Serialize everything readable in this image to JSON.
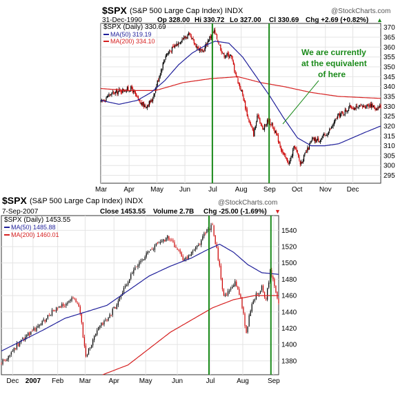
{
  "chart_data": [
    {
      "type": "candlestick",
      "symbol": "$SPX",
      "title": "$SPX",
      "subtitle": "(S&P 500 Large Cap Index) INDX",
      "watermark": "@StockCharts.com",
      "date": "31-Dec-1990",
      "quote": {
        "op": "Op 328.00",
        "hi": "Hi 330.72",
        "lo": "Lo 327.00",
        "cl": "Cl 330.69",
        "chg": "Chg +2.69 (+0.82%)"
      },
      "arrow": "▲",
      "legend": [
        {
          "label": "$SPX (Daily) 330.69",
          "color": "#000000"
        },
        {
          "label": "MA(50) 319.19",
          "color": "#1f1f9a"
        },
        {
          "label": "MA(200) 334.10",
          "color": "#d62020"
        }
      ],
      "annotation": {
        "lines": [
          "We are currently",
          "at the equivalent",
          "of here"
        ],
        "color": "#1a8a1a"
      },
      "x_tick_labels": [
        "Mar",
        "Apr",
        "May",
        "Jun",
        "Jul",
        "Aug",
        "Sep",
        "Oct",
        "Nov",
        "Dec"
      ],
      "x_tick_pos": [
        0.5,
        31,
        61.5,
        92,
        122.5,
        153.5,
        184.5,
        214.5,
        245.5,
        275.5
      ],
      "x_range": [
        0,
        306
      ],
      "y_ticks": [
        295,
        300,
        305,
        310,
        315,
        320,
        325,
        330,
        335,
        340,
        345,
        350,
        355,
        360,
        365,
        370
      ],
      "ylim": [
        291,
        372
      ],
      "vlines_x": [
        122,
        184
      ],
      "close_anchors": [
        [
          0,
          332
        ],
        [
          10,
          336
        ],
        [
          22,
          338
        ],
        [
          34,
          339
        ],
        [
          42,
          332
        ],
        [
          49,
          330
        ],
        [
          56,
          333
        ],
        [
          63,
          344
        ],
        [
          71,
          356
        ],
        [
          80,
          360
        ],
        [
          88,
          364
        ],
        [
          96,
          366
        ],
        [
          104,
          361
        ],
        [
          111,
          357
        ],
        [
          118,
          364
        ],
        [
          124,
          368
        ],
        [
          129,
          362
        ],
        [
          134,
          356
        ],
        [
          142,
          356
        ],
        [
          149,
          344
        ],
        [
          155,
          336
        ],
        [
          161,
          324
        ],
        [
          167,
          316
        ],
        [
          172,
          326
        ],
        [
          177,
          318
        ],
        [
          183,
          323
        ],
        [
          188,
          320
        ],
        [
          194,
          313
        ],
        [
          200,
          305
        ],
        [
          206,
          301
        ],
        [
          212,
          310
        ],
        [
          218,
          301
        ],
        [
          224,
          306
        ],
        [
          231,
          313
        ],
        [
          238,
          313
        ],
        [
          245,
          315
        ],
        [
          252,
          319
        ],
        [
          259,
          325
        ],
        [
          266,
          327
        ],
        [
          273,
          330
        ],
        [
          280,
          329
        ],
        [
          287,
          330
        ],
        [
          294,
          331
        ],
        [
          300,
          329
        ],
        [
          306,
          330
        ]
      ],
      "ma50_anchors": [
        [
          0,
          333
        ],
        [
          20,
          331
        ],
        [
          40,
          333
        ],
        [
          55,
          337
        ],
        [
          70,
          343
        ],
        [
          85,
          351
        ],
        [
          100,
          357
        ],
        [
          115,
          361
        ],
        [
          125,
          363
        ],
        [
          140,
          362
        ],
        [
          155,
          355
        ],
        [
          170,
          345
        ],
        [
          185,
          335
        ],
        [
          200,
          324
        ],
        [
          215,
          314
        ],
        [
          230,
          310
        ],
        [
          245,
          310
        ],
        [
          260,
          311
        ],
        [
          275,
          314
        ],
        [
          290,
          317
        ],
        [
          306,
          320
        ]
      ],
      "ma200_anchors": [
        [
          0,
          339
        ],
        [
          30,
          338
        ],
        [
          60,
          338
        ],
        [
          90,
          342
        ],
        [
          120,
          344
        ],
        [
          150,
          345
        ],
        [
          175,
          342
        ],
        [
          200,
          340
        ],
        [
          230,
          337
        ],
        [
          260,
          335
        ],
        [
          306,
          334
        ]
      ]
    },
    {
      "type": "candlestick",
      "symbol": "$SPX",
      "title": "$SPX",
      "subtitle": "(S&P 500 Large Cap Index) INDX",
      "watermark": "@StockCharts.com",
      "date": "7-Sep-2007",
      "quote": {
        "cl": "Close 1453.55",
        "vol": "Volume 2.7B",
        "chg": "Chg -25.00 (-1.69%)"
      },
      "arrow": "▼",
      "legend": [
        {
          "label": "$SPX (Daily) 1453.55",
          "color": "#000000"
        },
        {
          "label": "MA(50) 1485.88",
          "color": "#1f1f9a"
        },
        {
          "label": "MA(200) 1460.01",
          "color": "#d62020"
        }
      ],
      "x_tick_labels": [
        "Dec",
        "2007",
        "Feb",
        "Mar",
        "Apr",
        "May",
        "Jun",
        "Jul",
        "Aug",
        "Sep"
      ],
      "x_tick_pos": [
        8,
        22.5,
        40,
        59.5,
        80,
        102.5,
        125,
        148.5,
        171.5,
        193.5
      ],
      "x_range": [
        0,
        197
      ],
      "y_ticks": [
        1380,
        1400,
        1420,
        1440,
        1460,
        1480,
        1500,
        1520,
        1540
      ],
      "ylim": [
        1363,
        1558
      ],
      "vlines_x": [
        147.5,
        191.5
      ],
      "close_anchors": [
        [
          0,
          1377
        ],
        [
          6,
          1388
        ],
        [
          12,
          1401
        ],
        [
          18,
          1410
        ],
        [
          24,
          1420
        ],
        [
          30,
          1428
        ],
        [
          36,
          1440
        ],
        [
          42,
          1446
        ],
        [
          48,
          1453
        ],
        [
          52,
          1458
        ],
        [
          56,
          1440
        ],
        [
          58,
          1410
        ],
        [
          60,
          1386
        ],
        [
          64,
          1402
        ],
        [
          70,
          1422
        ],
        [
          76,
          1432
        ],
        [
          82,
          1450
        ],
        [
          88,
          1470
        ],
        [
          94,
          1490
        ],
        [
          100,
          1505
        ],
        [
          106,
          1515
        ],
        [
          112,
          1525
        ],
        [
          118,
          1531
        ],
        [
          124,
          1520
        ],
        [
          130,
          1502
        ],
        [
          136,
          1516
        ],
        [
          140,
          1522
        ],
        [
          146,
          1540
        ],
        [
          150,
          1546
        ],
        [
          152,
          1526
        ],
        [
          155,
          1495
        ],
        [
          158,
          1458
        ],
        [
          162,
          1465
        ],
        [
          166,
          1476
        ],
        [
          170,
          1458
        ],
        [
          174,
          1415
        ],
        [
          177,
          1443
        ],
        [
          181,
          1462
        ],
        [
          185,
          1470
        ],
        [
          188,
          1455
        ],
        [
          191,
          1490
        ],
        [
          193,
          1478
        ],
        [
          197,
          1453
        ]
      ],
      "ma50_anchors": [
        [
          0,
          1392
        ],
        [
          15,
          1405
        ],
        [
          30,
          1418
        ],
        [
          45,
          1432
        ],
        [
          60,
          1440
        ],
        [
          75,
          1448
        ],
        [
          90,
          1466
        ],
        [
          105,
          1484
        ],
        [
          120,
          1496
        ],
        [
          135,
          1506
        ],
        [
          145,
          1515
        ],
        [
          155,
          1523
        ],
        [
          165,
          1513
        ],
        [
          175,
          1498
        ],
        [
          185,
          1488
        ],
        [
          197,
          1486
        ]
      ],
      "ma200_anchors": [
        [
          72,
          1363
        ],
        [
          90,
          1375
        ],
        [
          105,
          1395
        ],
        [
          120,
          1415
        ],
        [
          135,
          1430
        ],
        [
          150,
          1445
        ],
        [
          165,
          1455
        ],
        [
          180,
          1460
        ],
        [
          197,
          1460
        ]
      ]
    }
  ]
}
